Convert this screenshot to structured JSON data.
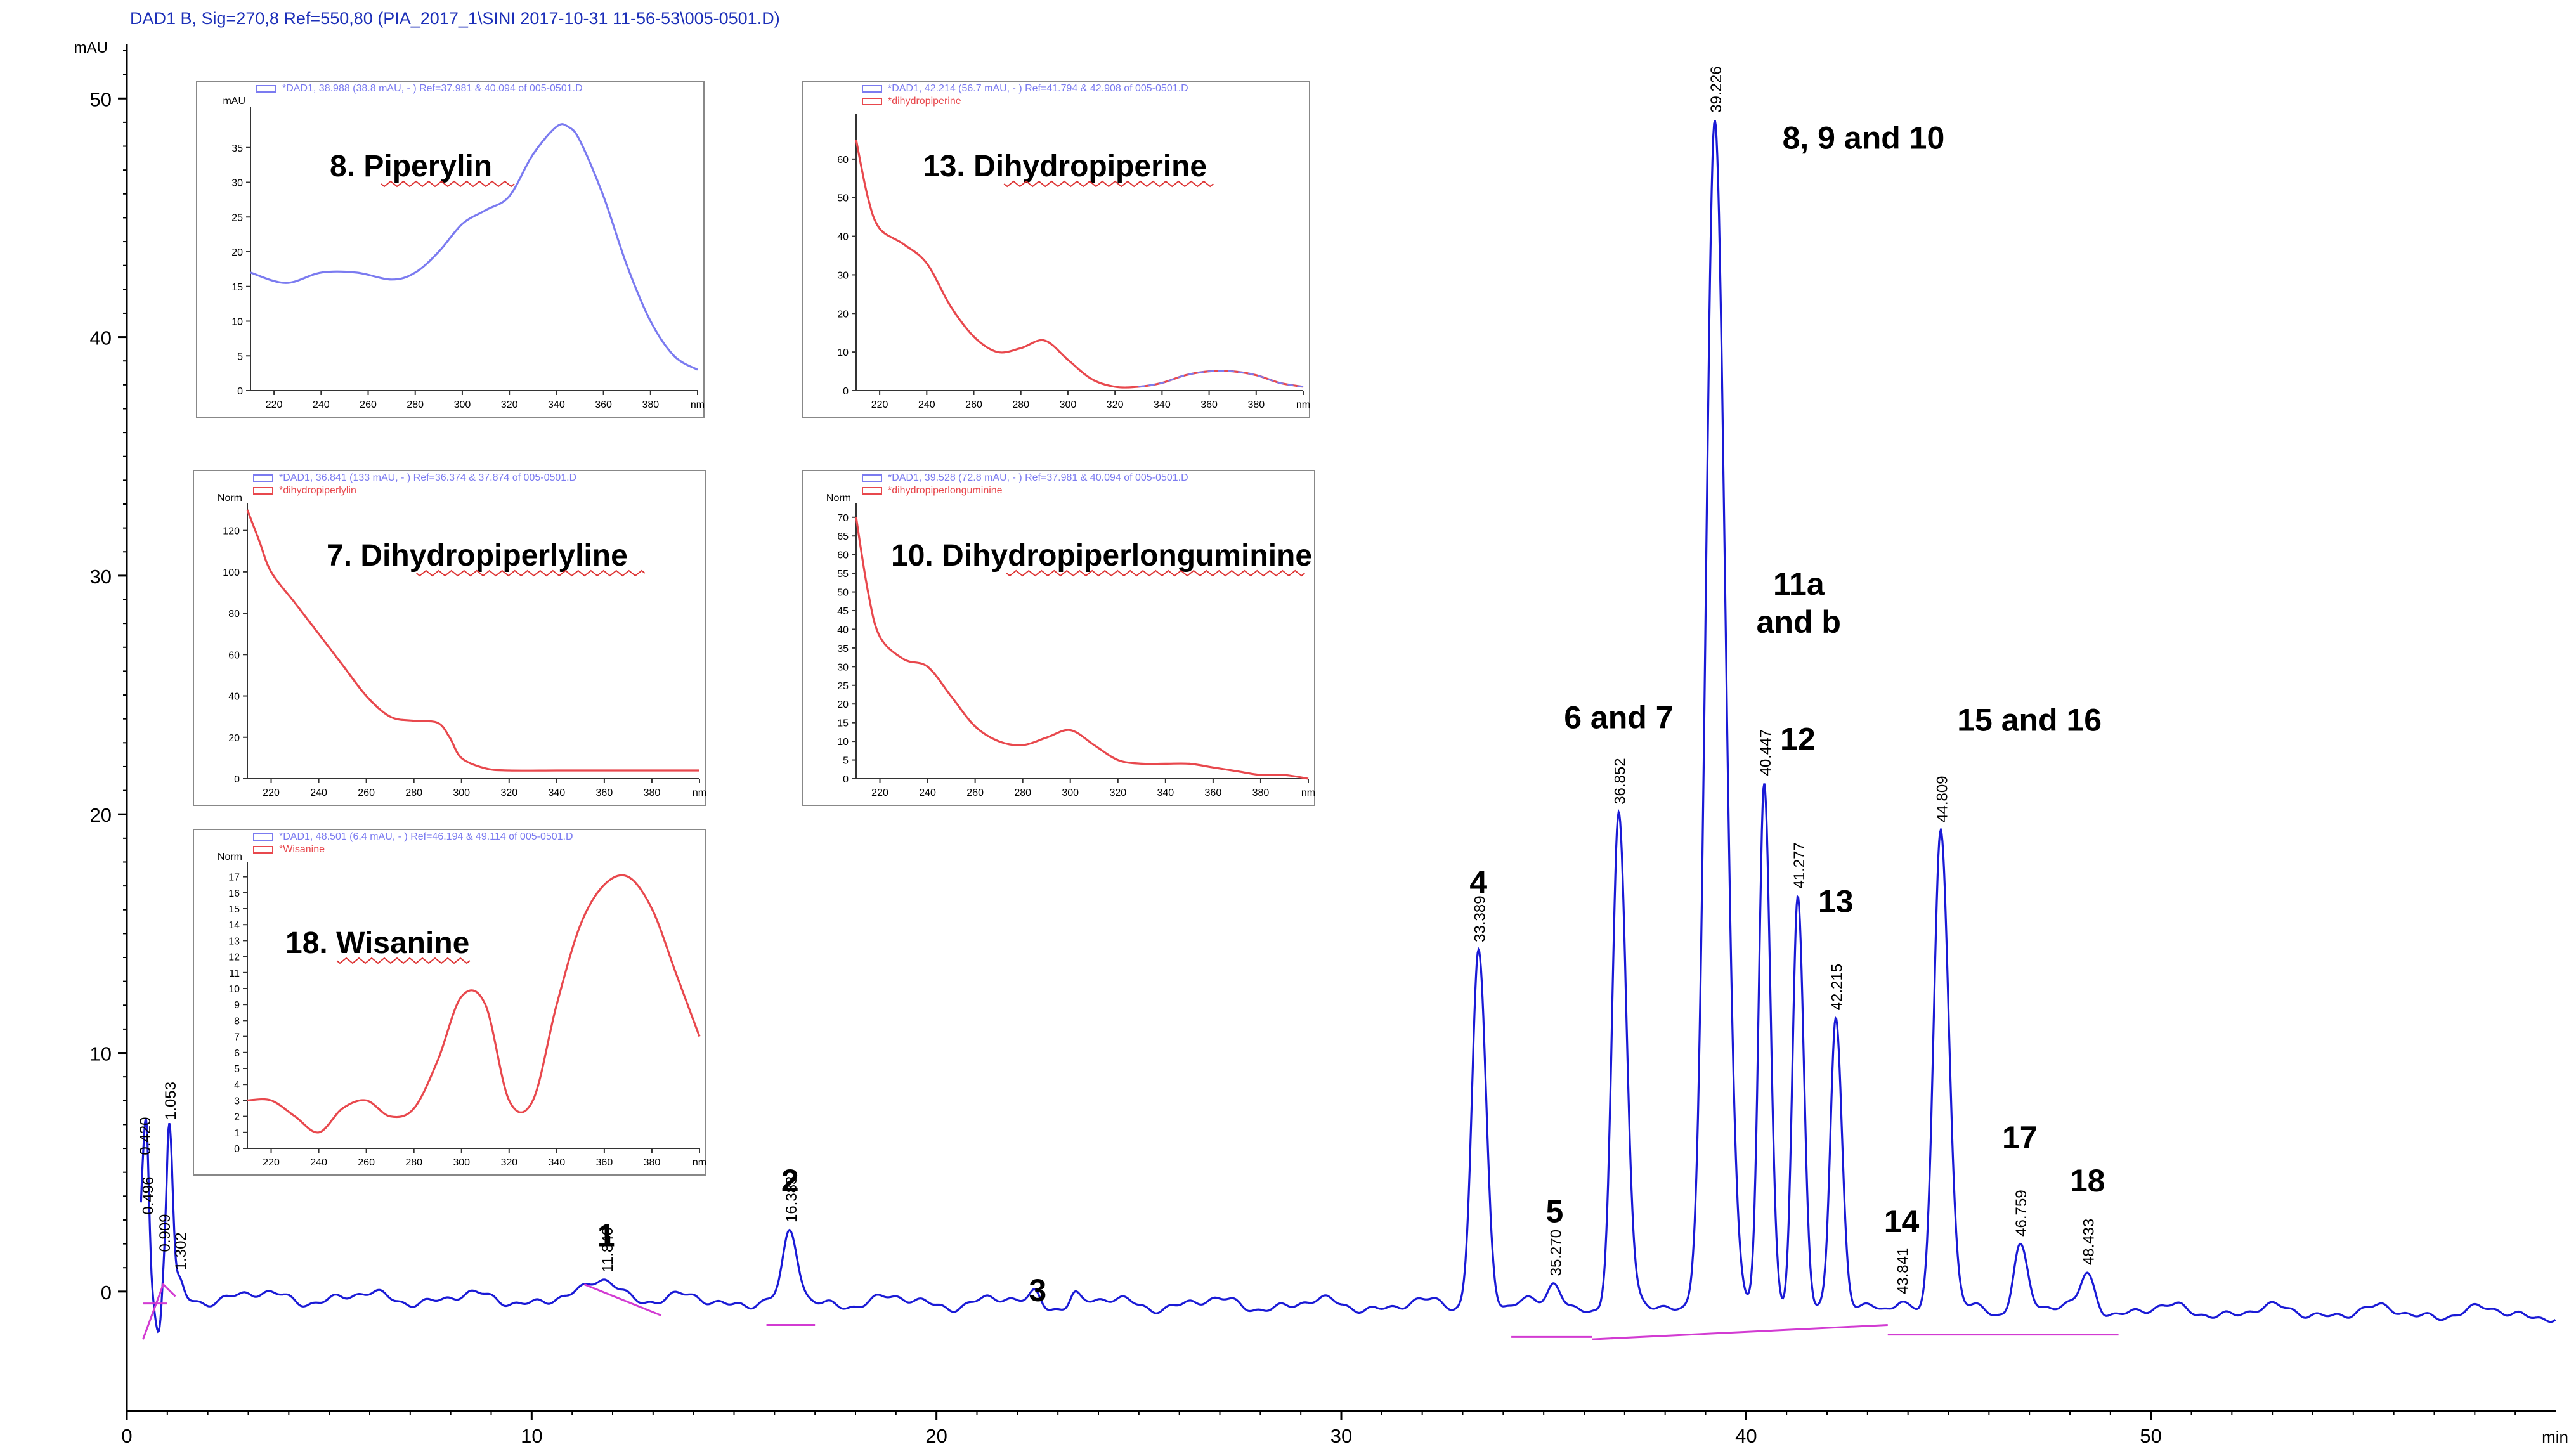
{
  "header": "DAD1 B, Sig=270,8 Ref=550,80 (PIA_2017_1\\SINI 2017-10-31 11-56-53\\005-0501.D)",
  "colors": {
    "trace": "#1a1ad6",
    "baseline": "#d23bd2",
    "axis": "#000000",
    "header": "#1c2fb8",
    "inset_blue": "#7b7bf0",
    "inset_red": "#e8484d"
  },
  "chart_data": {
    "type": "line",
    "title": "DAD1 B, Sig=270,8 Ref=550,80",
    "xlabel": "min",
    "ylabel": "mAU",
    "xlim": [
      0,
      60
    ],
    "ylim": [
      -5,
      52
    ],
    "xticks": [
      0,
      10,
      20,
      30,
      40,
      50
    ],
    "yticks": [
      0,
      10,
      20,
      30,
      40,
      50
    ],
    "peaks": [
      {
        "rt": 0.42,
        "h": 5.5,
        "w": 0.08,
        "rt_label": "0.420"
      },
      {
        "rt": 0.496,
        "h": 3.0,
        "w": 0.05,
        "rt_label": "0.496"
      },
      {
        "rt": 0.909,
        "h": 1.5,
        "w": 0.06,
        "rt_label": "0.909"
      },
      {
        "rt": 1.053,
        "h": 7.0,
        "w": 0.07,
        "rt_label": "1.053"
      },
      {
        "rt": 1.302,
        "h": 0.6,
        "w": 0.08,
        "rt_label": "1.302"
      },
      {
        "rt": 11.84,
        "h": 0.9,
        "w": 0.35,
        "rt_label": "11.840"
      },
      {
        "rt": 16.383,
        "h": 2.7,
        "w": 0.16,
        "rt_label": "16.383"
      },
      {
        "rt": 22.45,
        "h": 0.5,
        "w": 0.12
      },
      {
        "rt": 23.4,
        "h": 0.4,
        "w": 0.1
      },
      {
        "rt": 33.389,
        "h": 15.0,
        "w": 0.16,
        "rt_label": "33.389"
      },
      {
        "rt": 35.27,
        "h": 1.0,
        "w": 0.15,
        "rt_label": "35.270"
      },
      {
        "rt": 36.852,
        "h": 20.5,
        "w": 0.16,
        "rt_label": "36.852"
      },
      {
        "rt": 39.226,
        "h": 49.8,
        "w": 0.22,
        "rt_label": "39.226"
      },
      {
        "rt": 40.447,
        "h": 22.0,
        "w": 0.13,
        "rt_label": "40.447"
      },
      {
        "rt": 41.277,
        "h": 17.5,
        "w": 0.13,
        "rt_label": "41.277"
      },
      {
        "rt": 42.215,
        "h": 12.0,
        "w": 0.13,
        "rt_label": "42.215"
      },
      {
        "rt": 43.841,
        "h": 0.7,
        "w": 0.15,
        "rt_label": "43.841"
      },
      {
        "rt": 44.809,
        "h": 20.0,
        "w": 0.17,
        "rt_label": "44.809"
      },
      {
        "rt": 46.759,
        "h": 2.8,
        "w": 0.16,
        "rt_label": "46.759"
      },
      {
        "rt": 48.433,
        "h": 1.5,
        "w": 0.17,
        "rt_label": "48.433"
      }
    ],
    "annotations": [
      {
        "text": "1",
        "rt": 11.84
      },
      {
        "text": "2",
        "rt": 16.383
      },
      {
        "text": "3",
        "rt": 22.5
      },
      {
        "text": "4",
        "rt": 33.389
      },
      {
        "text": "5",
        "rt": 35.27
      },
      {
        "text": "6 and 7",
        "rt": 36.852
      },
      {
        "text": "8, 9 and 10",
        "rt": 39.226
      },
      {
        "text": "11a and b",
        "rt": 40.447
      },
      {
        "text": "12",
        "rt": 41.277
      },
      {
        "text": "13",
        "rt": 42.215
      },
      {
        "text": "14",
        "rt": 43.841
      },
      {
        "text": "15 and 16",
        "rt": 44.809
      },
      {
        "text": "17",
        "rt": 46.759
      },
      {
        "text": "18",
        "rt": 48.433
      }
    ],
    "insets": [
      {
        "id": "inset-8",
        "title": "8. Piperylin",
        "legend": [
          "*DAD1, 38.988 (38.8 mAU, - ) Ref=37.981 & 40.094 of 005-0501.D"
        ],
        "yunit": "mAU",
        "xlim": [
          210,
          400
        ],
        "ylim": [
          0,
          40
        ],
        "xticks": [
          220,
          240,
          260,
          280,
          300,
          320,
          340,
          360,
          380,
          "nm"
        ],
        "yticks": [
          0,
          5,
          10,
          15,
          20,
          25,
          30,
          35
        ],
        "curves": [
          {
            "color": "blue",
            "x": [
              210,
              225,
              240,
              255,
              270,
              280,
              290,
              300,
              310,
              320,
              330,
              340,
              345,
              350,
              360,
              370,
              380,
              390,
              400
            ],
            "y": [
              17,
              15.5,
              17,
              17,
              16,
              17,
              20,
              24,
              26,
              28,
              34,
              38,
              38,
              36,
              28,
              18,
              10,
              5,
              3
            ]
          }
        ]
      },
      {
        "id": "inset-13",
        "title": "13. Dihydropiperine",
        "legend": [
          "*DAD1, 42.214 (56.7 mAU, - ) Ref=41.794 & 42.908 of 005-0501.D",
          "*dihydropiperine"
        ],
        "yunit": "",
        "xlim": [
          210,
          400
        ],
        "ylim": [
          0,
          70
        ],
        "xticks": [
          220,
          240,
          260,
          280,
          300,
          320,
          340,
          360,
          380,
          "nm"
        ],
        "yticks": [
          0,
          10,
          20,
          30,
          40,
          50,
          60
        ],
        "curves": [
          {
            "color": "red",
            "x": [
              210,
              215,
              220,
              230,
              240,
              250,
              260,
              270,
              280,
              290,
              300,
              310,
              320,
              330,
              340,
              350,
              360,
              370,
              380,
              390,
              400
            ],
            "y": [
              65,
              50,
              42,
              38,
              33,
              22,
              14,
              10,
              11,
              13,
              8,
              3,
              1,
              1,
              2,
              4,
              5,
              5,
              4,
              2,
              1
            ]
          },
          {
            "color": "blue",
            "x": [
              330,
              340,
              350,
              360,
              370,
              380,
              390,
              400
            ],
            "y": [
              1,
              2,
              4,
              5,
              5,
              4,
              2,
              1
            ]
          }
        ]
      },
      {
        "id": "inset-7",
        "title": "7. Dihydropiperlyline",
        "legend": [
          "*DAD1, 36.841 (133 mAU, - ) Ref=36.374 & 37.874 of 005-0501.D",
          "*dihydropiperlylin"
        ],
        "yunit": "Norm",
        "xlim": [
          210,
          400
        ],
        "ylim": [
          0,
          130
        ],
        "xticks": [
          220,
          240,
          260,
          280,
          300,
          320,
          340,
          360,
          380,
          "nm"
        ],
        "yticks": [
          0,
          20,
          40,
          60,
          80,
          100,
          120
        ],
        "curves": [
          {
            "color": "red",
            "x": [
              210,
              215,
              220,
              230,
              240,
              250,
              260,
              270,
              280,
              290,
              295,
              300,
              310,
              320,
              340,
              360,
              380,
              400
            ],
            "y": [
              130,
              115,
              100,
              85,
              70,
              55,
              40,
              30,
              28,
              27,
              20,
              10,
              5,
              4,
              4,
              4,
              4,
              4
            ]
          }
        ]
      },
      {
        "id": "inset-10",
        "title": "10. Dihydropiperlonguminine",
        "legend": [
          "*DAD1, 39.528 (72.8 mAU, - ) Ref=37.981 & 40.094 of 005-0501.D",
          "*dihydropiperlonguminine"
        ],
        "yunit": "Norm",
        "xlim": [
          210,
          400
        ],
        "ylim": [
          0,
          72
        ],
        "xticks": [
          220,
          240,
          260,
          280,
          300,
          320,
          340,
          360,
          380,
          "nm"
        ],
        "yticks": [
          0,
          5,
          10,
          15,
          20,
          25,
          30,
          35,
          40,
          45,
          50,
          55,
          60,
          65,
          70
        ],
        "curves": [
          {
            "color": "red",
            "x": [
              210,
              215,
              220,
              230,
              240,
              250,
              260,
              270,
              280,
              290,
              300,
              310,
              320,
              330,
              340,
              350,
              360,
              370,
              380,
              390,
              400
            ],
            "y": [
              70,
              50,
              38,
              32,
              30,
              22,
              14,
              10,
              9,
              11,
              13,
              9,
              5,
              4,
              4,
              4,
              3,
              2,
              1,
              1,
              0
            ]
          }
        ]
      },
      {
        "id": "inset-18",
        "title": "18. Wisanine",
        "legend": [
          "*DAD1, 48.501 (6.4 mAU, - ) Ref=46.194 & 49.114 of 005-0501.D",
          "*Wisanine"
        ],
        "yunit": "Norm",
        "xlim": [
          210,
          400
        ],
        "ylim": [
          0,
          17.5
        ],
        "xticks": [
          220,
          240,
          260,
          280,
          300,
          320,
          340,
          360,
          380,
          "nm"
        ],
        "yticks": [
          0,
          1,
          2,
          3,
          4,
          5,
          6,
          7,
          8,
          9,
          10,
          11,
          12,
          13,
          14,
          15,
          16,
          17
        ],
        "curves": [
          {
            "color": "red",
            "x": [
              210,
              220,
              230,
              240,
              250,
              260,
              270,
              280,
              290,
              300,
              310,
              320,
              330,
              340,
              350,
              360,
              370,
              380,
              390,
              400
            ],
            "y": [
              3,
              3,
              2,
              1,
              2.5,
              3,
              2,
              2.5,
              5.5,
              9.5,
              9,
              3,
              3,
              9,
              14,
              16.5,
              17,
              15,
              11,
              7
            ]
          }
        ]
      }
    ]
  }
}
